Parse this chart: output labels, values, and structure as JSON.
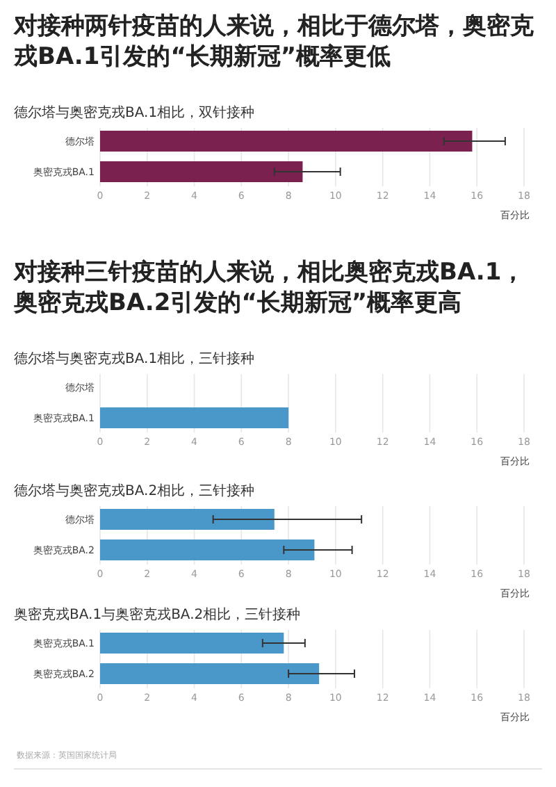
{
  "chart_data": [
    {
      "type": "bar",
      "orientation": "horizontal",
      "title": "对接种两针疫苗的人来说，相比于德尔塔，奥密克戎BA.1引发的“长期新冠”概率更低",
      "subtitle": "德尔塔与奥密克戎BA.1相比，双针接种",
      "categories": [
        "德尔塔",
        "奥密克戎BA.1"
      ],
      "values": [
        15.8,
        8.6
      ],
      "errors": [
        [
          14.6,
          17.2
        ],
        [
          7.4,
          10.2
        ]
      ],
      "color": "#7b2150",
      "xlim": [
        0,
        18
      ],
      "xticks": [
        0,
        2,
        4,
        6,
        8,
        10,
        12,
        14,
        16,
        18
      ],
      "xlabel": "百分比",
      "grid": "x"
    },
    {
      "type": "bar",
      "orientation": "horizontal",
      "title": "对接种三针疫苗的人来说，相比奥密克戎BA.1，奥密克戎BA.2引发的“长期新冠”概率更高",
      "subtitle": "德尔塔与奥密克戎BA.1相比，三针接种",
      "categories": [
        "德尔塔",
        "奥密克戎BA.1"
      ],
      "values": [
        null,
        8.0
      ],
      "color": "#4a98c9",
      "xlim": [
        0,
        18
      ],
      "xticks": [
        0,
        2,
        4,
        6,
        8,
        10,
        12,
        14,
        16,
        18
      ],
      "xlabel": "百分比",
      "grid": "x"
    },
    {
      "type": "bar",
      "orientation": "horizontal",
      "subtitle": "德尔塔与奥密克戎BA.2相比，三针接种",
      "categories": [
        "德尔塔",
        "奥密克戎BA.2"
      ],
      "values": [
        7.4,
        9.1
      ],
      "errors": [
        [
          4.8,
          11.1
        ],
        [
          7.8,
          10.7
        ]
      ],
      "color": "#4a98c9",
      "xlim": [
        0,
        18
      ],
      "xticks": [
        0,
        2,
        4,
        6,
        8,
        10,
        12,
        14,
        16,
        18
      ],
      "xlabel": "百分比",
      "grid": "x"
    },
    {
      "type": "bar",
      "orientation": "horizontal",
      "subtitle": "奥密克戎BA.1与奥密克戎BA.2相比，三针接种",
      "categories": [
        "奥密克戎BA.1",
        "奥密克戎BA.2"
      ],
      "values": [
        7.8,
        9.3
      ],
      "errors": [
        [
          6.9,
          8.7
        ],
        [
          8.0,
          10.8
        ]
      ],
      "color": "#4a98c9",
      "xlim": [
        0,
        18
      ],
      "xticks": [
        0,
        2,
        4,
        6,
        8,
        10,
        12,
        14,
        16,
        18
      ],
      "xlabel": "百分比",
      "grid": "x",
      "annotations": [
        "数据来源：英国国家统计局"
      ]
    }
  ]
}
